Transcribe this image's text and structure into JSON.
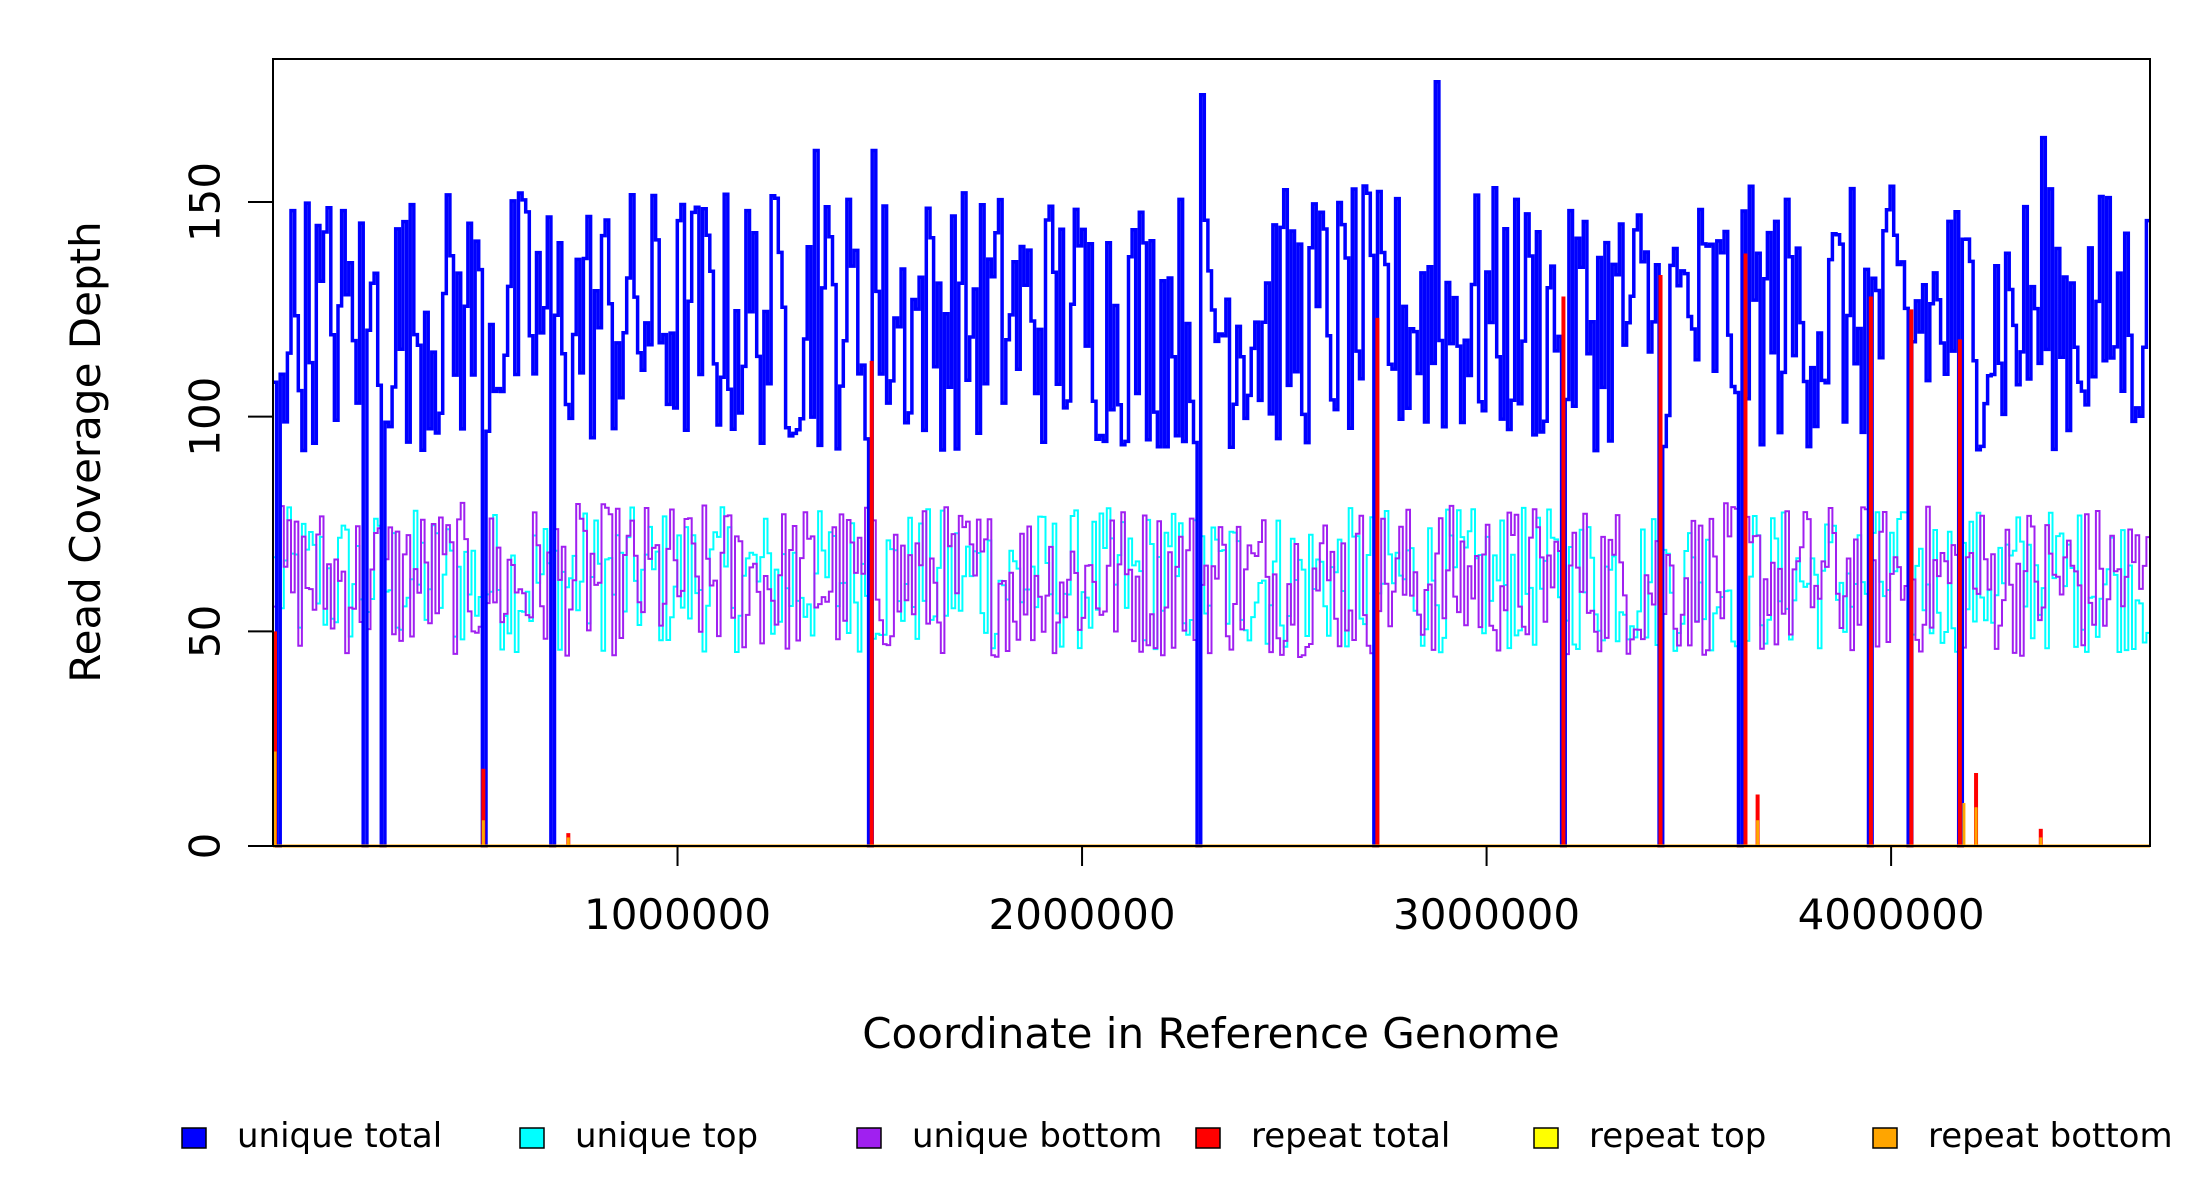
{
  "chart_data": {
    "type": "line",
    "title": "",
    "xlabel": "Coordinate in Reference Genome",
    "ylabel": "Read Coverage Depth",
    "xlim": [
      0,
      4640000
    ],
    "ylim": [
      0,
      180
    ],
    "x_ticks": [
      1000000,
      2000000,
      3000000,
      4000000
    ],
    "x_tick_labels": [
      "1000000",
      "2000000",
      "3000000",
      "4000000"
    ],
    "y_ticks": [
      0,
      50,
      100,
      150
    ],
    "y_tick_labels": [
      "0",
      "50",
      "100",
      "150"
    ],
    "grid": false,
    "legend_position": "bottom",
    "legend": [
      {
        "label": "unique total",
        "color": "#0000ff"
      },
      {
        "label": "unique top",
        "color": "#00ffff"
      },
      {
        "label": "unique bottom",
        "color": "#a020f0"
      },
      {
        "label": "repeat total",
        "color": "#ff0000"
      },
      {
        "label": "repeat top",
        "color": "#ffff00"
      },
      {
        "label": "repeat bottom",
        "color": "#ffa500"
      }
    ],
    "series": [
      {
        "name": "unique total",
        "color": "#0000ff",
        "stroke_width": 3.5,
        "typical_range": [
          85,
          178
        ],
        "mean": 123,
        "peaks": [
          [
            2290000,
            175
          ],
          [
            2870000,
            178
          ],
          [
            1340000,
            162
          ],
          [
            1480000,
            162
          ],
          [
            4370000,
            165
          ],
          [
            3200000,
            148
          ]
        ]
      },
      {
        "name": "unique top",
        "color": "#00ffff",
        "stroke_width": 2,
        "typical_range": [
          38,
          82
        ],
        "mean": 62
      },
      {
        "name": "unique bottom",
        "color": "#a020f0",
        "stroke_width": 2,
        "typical_range": [
          36,
          92
        ],
        "mean": 62
      },
      {
        "name": "repeat total",
        "color": "#ff0000",
        "stroke_width": 4,
        "spikes": [
          [
            5000,
            50
          ],
          [
            520000,
            18
          ],
          [
            730000,
            3
          ],
          [
            1480000,
            113
          ],
          [
            2730000,
            123
          ],
          [
            3190000,
            128
          ],
          [
            3430000,
            133
          ],
          [
            3640000,
            138
          ],
          [
            3670000,
            12
          ],
          [
            3950000,
            128
          ],
          [
            4050000,
            125
          ],
          [
            4170000,
            118
          ],
          [
            4210000,
            17
          ],
          [
            4370000,
            4
          ]
        ]
      },
      {
        "name": "repeat top",
        "color": "#ffff00",
        "stroke_width": 2,
        "spikes": [
          [
            5000,
            12
          ],
          [
            4180000,
            10
          ],
          [
            4210000,
            9
          ]
        ]
      },
      {
        "name": "repeat bottom",
        "color": "#ffa500",
        "stroke_width": 3,
        "spikes": [
          [
            5000,
            22
          ],
          [
            520000,
            6
          ],
          [
            730000,
            2
          ],
          [
            3670000,
            6
          ],
          [
            4180000,
            10
          ],
          [
            4210000,
            9
          ],
          [
            4370000,
            2
          ]
        ]
      }
    ],
    "dropouts": [
      10000,
      220000,
      265000,
      520000,
      685000,
      1470000,
      2285000,
      2725000,
      3185000,
      3425000,
      3620000,
      3945000,
      4040000,
      4170000
    ],
    "baseline": 0
  }
}
